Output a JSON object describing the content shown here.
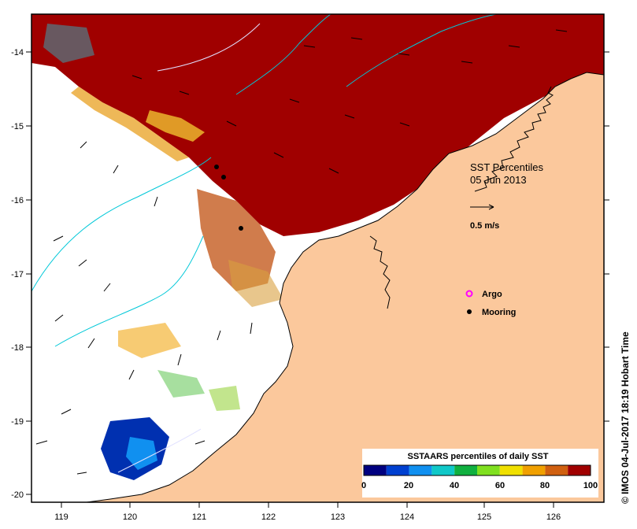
{
  "map": {
    "title": "SST Percentiles",
    "date": "05 Jun 2013",
    "scale_label": "0.5 m/s",
    "x_ticks": [
      "119",
      "120",
      "121",
      "122",
      "123",
      "124",
      "125",
      "126"
    ],
    "y_ticks": [
      "-14",
      "-15",
      "-16",
      "-17",
      "-18",
      "-19",
      "-20"
    ],
    "lon_range": [
      118.6,
      126.7
    ],
    "lat_range": [
      -20.1,
      -13.5
    ],
    "legend": {
      "argo": "Argo",
      "mooring": "Mooring"
    },
    "colorbar": {
      "title": "SSTAARS percentiles of daily SST",
      "ticks": [
        "0",
        "20",
        "40",
        "60",
        "80",
        "100"
      ],
      "colors": [
        "#000080",
        "#0040d0",
        "#1090f0",
        "#10c8c8",
        "#10b040",
        "#80e020",
        "#f0e000",
        "#f0a000",
        "#d06010",
        "#a00000"
      ]
    },
    "credit": "© IMOS 04-Jul-2017 18:19 Hobart Time",
    "colors": {
      "land": "#fbc89c",
      "ocean_white": "#ffffff",
      "hot": "#a00000",
      "argo": "#ff00ff"
    }
  }
}
